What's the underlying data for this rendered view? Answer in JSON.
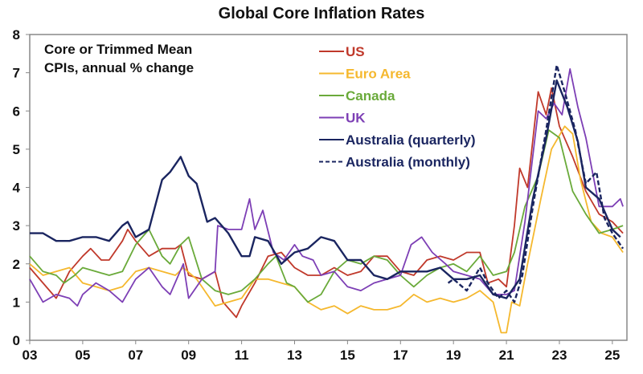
{
  "chart_data": {
    "type": "line",
    "title": "Global Core Inflation Rates",
    "annotation": [
      "Core or Trimmed Mean",
      "CPIs, annual % change"
    ],
    "xlabel": "",
    "ylabel": "",
    "xlim": [
      2003,
      2025.55
    ],
    "ylim": [
      0,
      8
    ],
    "x_ticks": [
      2003,
      2005,
      2007,
      2009,
      2011,
      2013,
      2015,
      2017,
      2019,
      2021,
      2023,
      2025
    ],
    "x_tick_labels": [
      "03",
      "05",
      "07",
      "09",
      "11",
      "13",
      "15",
      "17",
      "19",
      "21",
      "23",
      "25"
    ],
    "y_ticks": [
      0,
      1,
      2,
      3,
      4,
      5,
      6,
      7,
      8
    ],
    "y_tick_labels": [
      "0",
      "1",
      "2",
      "3",
      "4",
      "5",
      "6",
      "7",
      "8"
    ],
    "grid": false,
    "legend": "top-center",
    "series": [
      {
        "name": "US",
        "color": "#c0392b",
        "dash": false,
        "x": [
          2003,
          2003.5,
          2004,
          2004.5,
          2005,
          2005.3,
          2005.7,
          2006,
          2006.5,
          2006.7,
          2007,
          2007.5,
          2008,
          2008.5,
          2008.7,
          2009,
          2009.5,
          2010,
          2010.3,
          2010.8,
          2011,
          2011.5,
          2012,
          2012.5,
          2013,
          2013.5,
          2014,
          2014.5,
          2015,
          2015.5,
          2016,
          2016.5,
          2017,
          2017.5,
          2018,
          2018.5,
          2019,
          2019.5,
          2020,
          2020.3,
          2020.7,
          2021,
          2021.3,
          2021.5,
          2021.8,
          2022.2,
          2022.5,
          2022.7,
          2023,
          2023.5,
          2024,
          2024.5,
          2025,
          2025.4
        ],
        "y": [
          1.9,
          1.5,
          1.1,
          1.8,
          2.2,
          2.4,
          2.1,
          2.1,
          2.6,
          2.9,
          2.6,
          2.2,
          2.4,
          2.4,
          2.5,
          1.7,
          1.6,
          1.8,
          1.0,
          0.6,
          0.9,
          1.5,
          2.2,
          2.3,
          1.9,
          1.7,
          1.7,
          1.9,
          1.7,
          1.8,
          2.2,
          2.2,
          1.8,
          1.7,
          2.1,
          2.2,
          2.1,
          2.3,
          2.3,
          1.5,
          1.6,
          1.4,
          3.0,
          4.5,
          4.0,
          6.5,
          5.9,
          6.6,
          5.6,
          4.8,
          3.9,
          3.3,
          3.1,
          2.8
        ]
      },
      {
        "name": "Euro Area",
        "color": "#f5b82e",
        "dash": false,
        "x": [
          2003,
          2003.5,
          2004,
          2004.5,
          2005,
          2005.5,
          2006,
          2006.5,
          2007,
          2007.5,
          2008,
          2008.5,
          2008.8,
          2009.3,
          2009.7,
          2010,
          2010.5,
          2011,
          2011.5,
          2012,
          2012.5,
          2013,
          2013.5,
          2014,
          2014.5,
          2015,
          2015.5,
          2016,
          2016.5,
          2017,
          2017.5,
          2018,
          2018.5,
          2019,
          2019.5,
          2020,
          2020.5,
          2020.8,
          2021,
          2021.2,
          2021.5,
          2021.8,
          2022.3,
          2022.7,
          2023.2,
          2023.5,
          2023.8,
          2024.2,
          2024.6,
          2025,
          2025.4
        ],
        "y": [
          2.0,
          1.7,
          1.8,
          1.9,
          1.5,
          1.4,
          1.3,
          1.4,
          1.8,
          1.9,
          1.8,
          1.7,
          1.9,
          1.6,
          1.2,
          0.9,
          1.0,
          1.1,
          1.6,
          1.6,
          1.5,
          1.4,
          1.0,
          0.8,
          0.9,
          0.7,
          0.9,
          0.8,
          0.8,
          0.9,
          1.2,
          1.0,
          1.1,
          1.0,
          1.1,
          1.3,
          1.0,
          0.2,
          0.2,
          1.0,
          0.9,
          2.0,
          3.7,
          5.0,
          5.6,
          5.4,
          4.2,
          3.1,
          2.8,
          2.7,
          2.3
        ]
      },
      {
        "name": "Canada",
        "color": "#6aaa3a",
        "dash": false,
        "x": [
          2003,
          2003.5,
          2004,
          2004.3,
          2004.7,
          2005,
          2005.5,
          2006,
          2006.5,
          2007,
          2007.5,
          2008,
          2008.3,
          2008.7,
          2009,
          2009.5,
          2010,
          2010.5,
          2011,
          2011.5,
          2012,
          2012.3,
          2012.7,
          2013,
          2013.5,
          2014,
          2014.5,
          2015,
          2015.5,
          2016,
          2016.5,
          2017,
          2017.5,
          2018,
          2018.5,
          2019,
          2019.5,
          2020,
          2020.5,
          2021,
          2021.3,
          2021.7,
          2022.2,
          2022.6,
          2023,
          2023.5,
          2024,
          2024.5,
          2025,
          2025.4
        ],
        "y": [
          2.2,
          1.8,
          1.7,
          1.5,
          1.7,
          1.9,
          1.8,
          1.7,
          1.8,
          2.5,
          2.9,
          2.2,
          2.0,
          2.5,
          2.7,
          1.6,
          1.3,
          1.2,
          1.3,
          1.6,
          2.0,
          2.2,
          1.5,
          1.4,
          1.0,
          1.2,
          1.8,
          2.1,
          2.0,
          2.2,
          2.1,
          1.7,
          1.4,
          1.7,
          1.9,
          2.0,
          1.8,
          2.2,
          1.7,
          1.8,
          2.3,
          3.5,
          4.3,
          5.5,
          5.3,
          3.9,
          3.3,
          2.8,
          2.9,
          3.0
        ]
      },
      {
        "name": "UK",
        "color": "#7d3fb5",
        "dash": false,
        "x": [
          2003,
          2003.5,
          2004,
          2004.5,
          2004.8,
          2005,
          2005.5,
          2006,
          2006.5,
          2007,
          2007.5,
          2008,
          2008.3,
          2008.8,
          2009,
          2009.5,
          2010,
          2010.1,
          2010.5,
          2011,
          2011.3,
          2011.5,
          2011.8,
          2012.2,
          2012.6,
          2013,
          2013.3,
          2013.7,
          2014,
          2014.5,
          2015,
          2015.5,
          2016,
          2016.5,
          2017,
          2017.4,
          2017.8,
          2018.2,
          2018.7,
          2019,
          2019.5,
          2020,
          2020.5,
          2021,
          2021.3,
          2021.7,
          2022.2,
          2022.5,
          2022.8,
          2023.1,
          2023.4,
          2023.7,
          2024,
          2024.5,
          2025,
          2025.3,
          2025.4
        ],
        "y": [
          1.6,
          1.0,
          1.2,
          1.1,
          0.9,
          1.2,
          1.5,
          1.3,
          1.0,
          1.6,
          1.9,
          1.4,
          1.2,
          2.0,
          1.1,
          1.6,
          1.8,
          3.0,
          2.9,
          2.9,
          3.7,
          2.9,
          3.4,
          2.3,
          2.1,
          2.5,
          2.2,
          2.1,
          1.7,
          1.8,
          1.4,
          1.3,
          1.5,
          1.6,
          1.7,
          2.5,
          2.7,
          2.3,
          2.0,
          1.8,
          1.7,
          1.6,
          1.2,
          1.2,
          1.3,
          3.1,
          6.0,
          5.8,
          6.2,
          5.9,
          7.1,
          6.1,
          5.3,
          3.5,
          3.5,
          3.7,
          3.5
        ]
      },
      {
        "name": "Australia (quarterly)",
        "color": "#1a2560",
        "dash": false,
        "x": [
          2003,
          2003.5,
          2004,
          2004.5,
          2005,
          2005.5,
          2006,
          2006.5,
          2006.7,
          2007,
          2007.5,
          2008,
          2008.3,
          2008.7,
          2009,
          2009.3,
          2009.7,
          2010,
          2010.5,
          2011,
          2011.3,
          2011.5,
          2012,
          2012.5,
          2013,
          2013.5,
          2014,
          2014.5,
          2015,
          2015.5,
          2016,
          2016.5,
          2017,
          2018,
          2018.5,
          2019,
          2019.5,
          2020,
          2020.5,
          2021,
          2021.5,
          2022,
          2022.5,
          2022.9,
          2023.3,
          2023.7,
          2024,
          2024.5,
          2025,
          2025.3
        ],
        "y": [
          2.8,
          2.8,
          2.6,
          2.6,
          2.7,
          2.7,
          2.6,
          3.0,
          3.1,
          2.7,
          2.9,
          4.2,
          4.4,
          4.8,
          4.3,
          4.1,
          3.1,
          3.2,
          2.8,
          2.2,
          2.2,
          2.7,
          2.6,
          2.0,
          2.3,
          2.4,
          2.7,
          2.6,
          2.1,
          2.1,
          1.7,
          1.6,
          1.8,
          1.8,
          1.9,
          1.6,
          1.6,
          1.7,
          1.2,
          1.1,
          1.6,
          3.7,
          5.3,
          6.8,
          6.1,
          5.2,
          4.0,
          3.7,
          2.9,
          2.7
        ]
      },
      {
        "name": "Australia (monthly)",
        "color": "#1a2560",
        "dash": true,
        "x": [
          2018.8,
          2019,
          2019.5,
          2020,
          2020.3,
          2020.7,
          2021,
          2021.3,
          2021.6,
          2022,
          2022.5,
          2022.9,
          2023.2,
          2023.6,
          2024,
          2024.4,
          2024.7,
          2025,
          2025.4
        ],
        "y": [
          1.5,
          1.6,
          1.3,
          1.9,
          1.5,
          1.1,
          1.3,
          1.0,
          1.7,
          3.5,
          5.5,
          7.2,
          6.5,
          5.5,
          4.1,
          4.4,
          3.2,
          2.8,
          2.4
        ]
      }
    ]
  }
}
